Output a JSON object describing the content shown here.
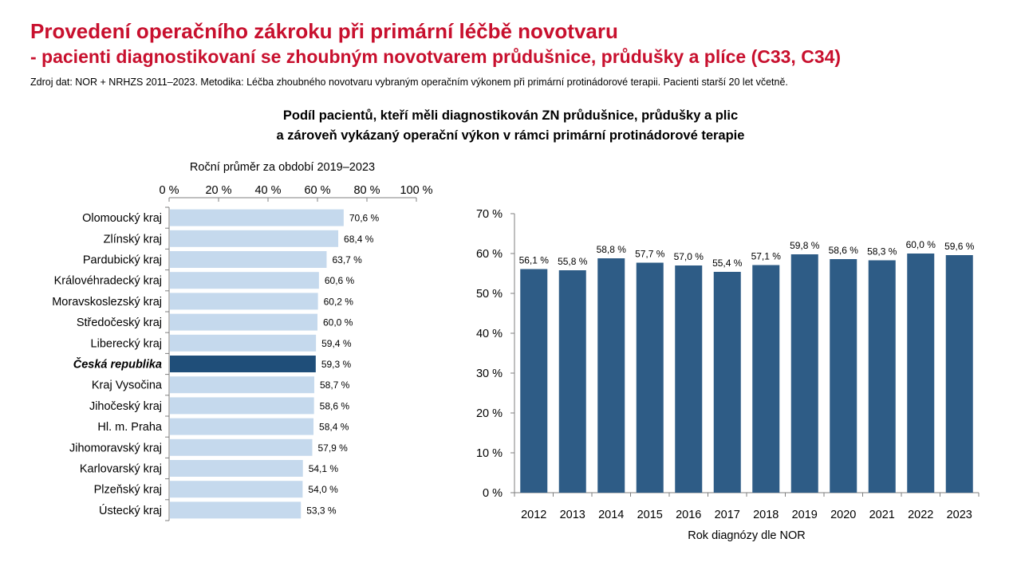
{
  "header": {
    "title": "Provedení operačního zákroku při primární léčbě novotvaru",
    "subtitle": "- pacienti diagnostikovaní se zhoubným novotvarem průdušnice, průdušky a plíce (C33, C34)",
    "source": "Zdroj dat: NOR + NRHZS 2011–2023. Metodika: Léčba zhoubného novotvaru vybraným operačním výkonem při primární protinádorové terapii. Pacienti starší 20 let včetně."
  },
  "figure": {
    "heading_line1": "Podíl pacientů, kteří měli diagnostikován ZN průdušnice, průdušky a plic",
    "heading_line2": "a zároveň vykázaný operační výkon v rámci primární protinádorové terapie"
  },
  "colors": {
    "title": "#c8102e",
    "bar_light": "#c5d9ed",
    "bar_highlight": "#1f4e79",
    "bar_column": "#2e5c86"
  },
  "chart_data": [
    {
      "type": "bar",
      "orientation": "horizontal",
      "title": "Roční průměr za období 2019–2023",
      "categories": [
        "Olomoucký kraj",
        "Zlínský kraj",
        "Pardubický kraj",
        "Královéhradecký kraj",
        "Moravskoslezský kraj",
        "Středočeský kraj",
        "Liberecký kraj",
        "Česká republika",
        "Kraj Vysočina",
        "Jihočeský kraj",
        "Hl. m. Praha",
        "Jihomoravský kraj",
        "Karlovarský kraj",
        "Plzeňský kraj",
        "Ústecký kraj"
      ],
      "values": [
        70.6,
        68.4,
        63.7,
        60.6,
        60.2,
        60.0,
        59.4,
        59.3,
        58.7,
        58.6,
        58.4,
        57.9,
        54.1,
        54.0,
        53.3
      ],
      "value_labels": [
        "70,6 %",
        "68,4 %",
        "63,7 %",
        "60,6 %",
        "60,2 %",
        "60,0 %",
        "59,4 %",
        "59,3 %",
        "58,7 %",
        "58,6 %",
        "58,4 %",
        "57,9 %",
        "54,1 %",
        "54,0 %",
        "53,3 %"
      ],
      "highlight": "Česká republika",
      "xlim": [
        0,
        100
      ],
      "xticks": [
        0,
        20,
        40,
        60,
        80,
        100
      ],
      "xtick_labels": [
        "0 %",
        "20 %",
        "40 %",
        "60 %",
        "80 %",
        "100 %"
      ],
      "xaxis_position": "top",
      "grid": false
    },
    {
      "type": "bar",
      "orientation": "vertical",
      "xlabel": "Rok diagnózy dle NOR",
      "categories": [
        "2012",
        "2013",
        "2014",
        "2015",
        "2016",
        "2017",
        "2018",
        "2019",
        "2020",
        "2021",
        "2022",
        "2023"
      ],
      "values": [
        56.1,
        55.8,
        58.8,
        57.7,
        57.0,
        55.4,
        57.1,
        59.8,
        58.6,
        58.3,
        60.0,
        59.6
      ],
      "value_labels": [
        "56,1 %",
        "55,8 %",
        "58,8 %",
        "57,7 %",
        "57,0 %",
        "55,4 %",
        "57,1 %",
        "59,8 %",
        "58,6 %",
        "58,3 %",
        "60,0 %",
        "59,6 %"
      ],
      "ylim": [
        0,
        70
      ],
      "yticks": [
        0,
        10,
        20,
        30,
        40,
        50,
        60,
        70
      ],
      "ytick_labels": [
        "0 %",
        "10 %",
        "20 %",
        "30 %",
        "40 %",
        "50 %",
        "60 %",
        "70 %"
      ],
      "grid": false
    }
  ]
}
